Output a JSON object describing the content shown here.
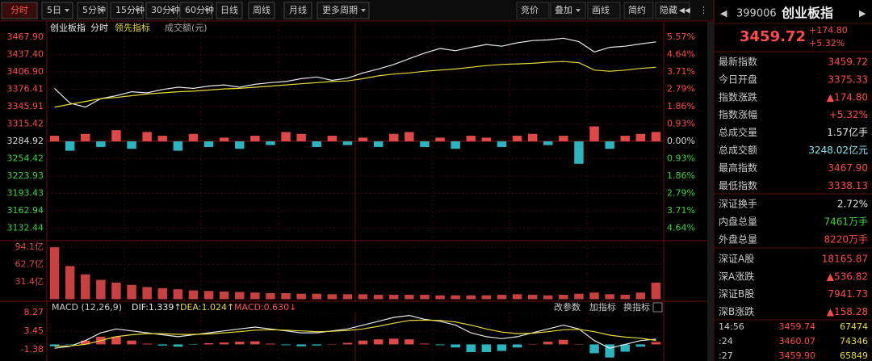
{
  "toolbar": {
    "left": [
      "分时",
      "5日",
      "5分钟",
      "15分钟",
      "30分钟",
      "60分钟",
      "日线",
      "周线",
      "月线",
      "更多周期"
    ],
    "right": [
      "竞价",
      "叠加",
      "画线",
      "简约",
      "隐藏"
    ]
  },
  "chart_data": [
    {
      "type": "line",
      "title": "创业板指",
      "note": "成交额(元)",
      "ylim": [
        3114.7,
        3476.4
      ],
      "yticks": [
        {
          "value": 3467.9,
          "label": "3467.90"
        },
        {
          "value": 3437.4,
          "label": "3437.40"
        },
        {
          "value": 3406.9,
          "label": "3406.90"
        },
        3376.41,
        3345.91,
        3315.42,
        3284.92,
        3254.42,
        3223.93,
        3193.43,
        3162.94,
        3132.44
      ],
      "y2lim": [
        -5.18,
        5.83
      ],
      "y2ticks": [
        {
          "value": 5.57,
          "label": "5.57%"
        },
        {
          "value": 4.64,
          "label": "4.64%"
        },
        {
          "value": 3.71,
          "label": "3.71%"
        },
        {
          "value": 2.79,
          "label": "2.79%"
        },
        {
          "value": 1.86,
          "label": "1.86%"
        },
        {
          "value": 0.93,
          "label": "0.93%"
        },
        {
          "value": 0,
          "label": "0.00%"
        },
        {
          "value": -0.93,
          "label": "0.93%"
        },
        {
          "value": -1.86,
          "label": "1.86%"
        },
        {
          "value": -2.79,
          "label": "2.79%"
        },
        {
          "value": -3.71,
          "label": "3.71%"
        },
        {
          "value": -4.64,
          "label": "4.64%"
        }
      ],
      "series": [
        {
          "name": "分时",
          "color": "#e8e8e8",
          "values": [
            3378,
            3352,
            3345,
            3360,
            3365,
            3372,
            3370,
            3376,
            3380,
            3378,
            3382,
            3384,
            3380,
            3385,
            3388,
            3390,
            3395,
            3398,
            3392,
            3396,
            3405,
            3412,
            3420,
            3430,
            3440,
            3448,
            3444,
            3450,
            3455,
            3452,
            3458,
            3462,
            3463,
            3466,
            3460,
            3442,
            3450,
            3452,
            3456,
            3459.72
          ]
        },
        {
          "name": "领先指标",
          "color": "#e8d93a",
          "values": [
            3345,
            3350,
            3355,
            3360,
            3362,
            3365,
            3368,
            3370,
            3372,
            3373,
            3375,
            3377,
            3378,
            3380,
            3382,
            3384,
            3386,
            3388,
            3390,
            3391,
            3395,
            3400,
            3403,
            3405,
            3408,
            3410,
            3412,
            3415,
            3418,
            3420,
            3421,
            3422,
            3424,
            3425,
            3423,
            3410,
            3408,
            3410,
            3413,
            3415
          ]
        },
        {
          "type": "bar",
          "axis": "y2",
          "color": "#e04848",
          "down_color": "#2ab5c0",
          "values": [
            0.3,
            -0.5,
            0.4,
            -0.3,
            0.6,
            -0.4,
            0.5,
            0.3,
            -0.5,
            0.4,
            -0.3,
            0.2,
            -0.4,
            0.3,
            -0.2,
            0.5,
            0.4,
            -0.3,
            0.3,
            -0.2,
            0.2,
            -0.3,
            0.4,
            0.5,
            -0.3,
            0.2,
            -0.4,
            0.3,
            0.2,
            -0.3,
            0.3,
            0.4,
            -0.2,
            0.3,
            -1.2,
            0.8,
            -0.4,
            0.3,
            0.4,
            0.5
          ]
        }
      ]
    },
    {
      "type": "bar",
      "color": "#c84040",
      "ylim": [
        0,
        103
      ],
      "yticks": [
        {
          "value": 94.1,
          "label": "94.1亿"
        },
        {
          "value": 62.7,
          "label": "62.7亿"
        },
        {
          "value": 31.4,
          "label": "31.4亿"
        }
      ],
      "values": [
        94,
        60,
        45,
        35,
        30,
        26,
        22,
        20,
        18,
        16,
        15,
        14,
        13,
        12,
        11,
        11,
        10,
        10,
        9,
        9,
        9,
        8,
        8,
        8,
        8,
        7,
        7,
        7,
        7,
        8,
        9,
        8,
        7,
        8,
        10,
        12,
        9,
        8,
        12,
        30
      ]
    },
    {
      "type": "macd",
      "title": "MACD (12,26,9)",
      "readouts": [
        "DIF:1.339↑",
        "DEA:1.024↑",
        "MACD:0.630↓"
      ],
      "buttons": [
        "改参数",
        "加指标",
        "换指标"
      ],
      "ylim": [
        -4.31,
        9.1
      ],
      "yticks": [
        8.27,
        3.45,
        -1.38
      ],
      "series": [
        {
          "color": "#e8e8e8",
          "values": [
            -1,
            -0.5,
            1,
            3,
            4,
            3.5,
            3,
            2.5,
            2,
            2.5,
            3,
            3.5,
            4,
            4.5,
            4,
            3.5,
            3,
            3,
            3.5,
            4,
            5,
            6,
            7,
            7.5,
            6.5,
            6,
            5,
            3,
            2,
            1.5,
            2,
            3,
            4,
            5,
            4,
            1,
            -1,
            0,
            1,
            1.339
          ]
        },
        {
          "color": "#e8d93a",
          "values": [
            -0.5,
            -0.4,
            0,
            1,
            2,
            2.5,
            2.8,
            2.8,
            2.6,
            2.6,
            2.7,
            3,
            3.3,
            3.7,
            3.8,
            3.7,
            3.5,
            3.3,
            3.4,
            3.6,
            4,
            4.7,
            5.5,
            6.2,
            6.3,
            6.2,
            5.8,
            5,
            4,
            3.2,
            2.8,
            2.9,
            3.3,
            3.8,
            3.9,
            3.3,
            2.4,
            1.9,
            1.6,
            1.024
          ]
        },
        {
          "type": "bar",
          "color": "#e04848",
          "down_color": "#2ab5c0",
          "values": [
            -0.5,
            -0.1,
            1,
            2,
            2,
            1,
            0.2,
            -0.3,
            -0.6,
            -0.1,
            0.3,
            0.5,
            0.7,
            0.8,
            0.2,
            -0.2,
            -0.5,
            -0.3,
            0.1,
            0.4,
            1,
            1.3,
            1.5,
            1.3,
            0.2,
            -0.2,
            -0.8,
            -2,
            -2,
            -1.7,
            -0.8,
            0.1,
            0.7,
            1.2,
            0.1,
            -2.3,
            -3.4,
            -1.9,
            -0.6,
            0.63
          ]
        }
      ]
    }
  ],
  "quote": {
    "code": "399006",
    "name": "创业板指",
    "price": "3459.72",
    "change": "+174.80",
    "change_pct": "+5.32%",
    "rows": [
      {
        "label": "最新指数",
        "value": "3459.72",
        "color": "#ff4a4a"
      },
      {
        "label": "今日开盘",
        "value": "3375.33",
        "color": "#ff4a4a"
      },
      {
        "label": "指数涨跌",
        "value": "▲174.80",
        "color": "#ff4a4a"
      },
      {
        "label": "指数涨幅",
        "value": "+5.32%",
        "color": "#ff4a4a"
      },
      {
        "label": "总成交量",
        "value": "1.57亿手",
        "color": "#e8e8e8"
      },
      {
        "label": "总成交额",
        "value": "3248.02亿元",
        "color": "#7fe8f0"
      },
      {
        "label": "最高指数",
        "value": "3467.90",
        "color": "#ff4a4a"
      },
      {
        "label": "最低指数",
        "value": "3338.13",
        "color": "#ff4a4a"
      },
      {
        "label": "深证换手",
        "value": "2.72%",
        "color": "#e8e8e8"
      },
      {
        "label": "内盘总量",
        "value": "7461万手",
        "color": "#3ed23e"
      },
      {
        "label": "外盘总量",
        "value": "8220万手",
        "color": "#ff4a4a"
      },
      {
        "label": "深证A股",
        "value": "18165.87",
        "color": "#ff4a4a"
      },
      {
        "label": "深A涨跌",
        "value": "▲536.82",
        "color": "#ff4a4a"
      },
      {
        "label": "深证B股",
        "value": "7941.73",
        "color": "#ff4a4a"
      },
      {
        "label": "深B涨跌",
        "value": "▲158.28",
        "color": "#ff4a4a"
      }
    ],
    "ticks": [
      [
        "14:56",
        "3459.74",
        "67474"
      ],
      [
        ":24",
        "3460.07",
        "74346"
      ],
      [
        ":27",
        "3459.90",
        "65849"
      ]
    ]
  }
}
